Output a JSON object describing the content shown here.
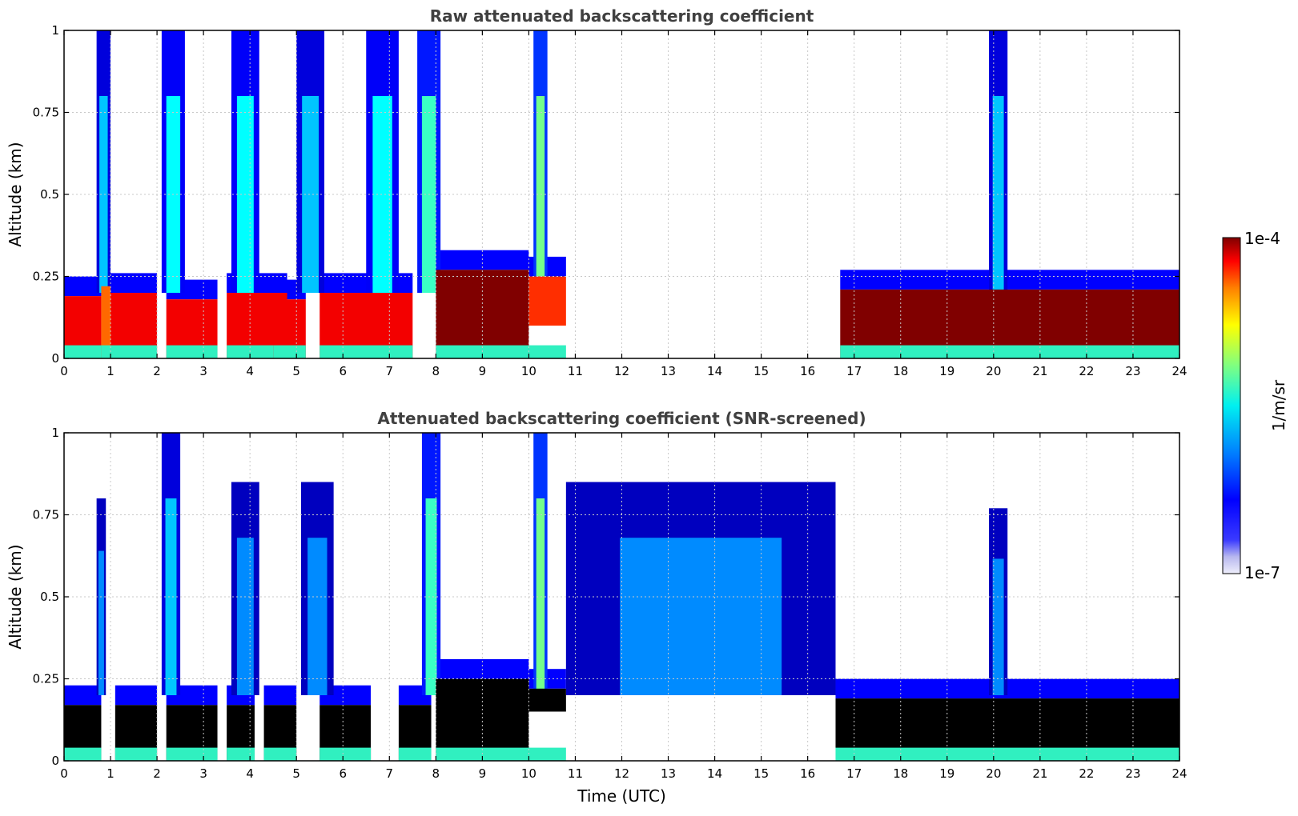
{
  "chart_data": [
    {
      "type": "heatmap",
      "title": "Raw attenuated backscattering coefficient",
      "xlabel": "",
      "ylabel": "Altitude (km)",
      "xlim": [
        0,
        24
      ],
      "ylim": [
        0,
        1
      ],
      "xticks": [
        "0",
        "1",
        "2",
        "3",
        "4",
        "5",
        "6",
        "7",
        "8",
        "9",
        "10",
        "11",
        "12",
        "13",
        "14",
        "15",
        "16",
        "17",
        "18",
        "19",
        "20",
        "21",
        "22",
        "23",
        "24"
      ],
      "yticks": [
        "0",
        "0.25",
        "0.5",
        "0.75",
        "1"
      ],
      "grid": true,
      "layers": [
        {
          "x": [
            0.0,
            0.8
          ],
          "y": [
            0.0,
            0.19
          ],
          "level": 0.9
        },
        {
          "x": [
            0.8,
            1.0
          ],
          "y": [
            0.0,
            0.22
          ],
          "level": 0.8
        },
        {
          "x": [
            1.0,
            2.0
          ],
          "y": [
            0.0,
            0.2
          ],
          "level": 0.9
        },
        {
          "x": [
            2.2,
            3.3
          ],
          "y": [
            0.0,
            0.18
          ],
          "level": 0.9
        },
        {
          "x": [
            3.5,
            4.8
          ],
          "y": [
            0.0,
            0.2
          ],
          "level": 0.9
        },
        {
          "x": [
            4.5,
            5.2
          ],
          "y": [
            0.0,
            0.18
          ],
          "level": 0.9
        },
        {
          "x": [
            5.5,
            7.5
          ],
          "y": [
            0.0,
            0.2
          ],
          "level": 0.9
        },
        {
          "x": [
            8.0,
            10.0
          ],
          "y": [
            0.0,
            0.27
          ],
          "level": 1.0
        },
        {
          "x": [
            10.0,
            10.8
          ],
          "y": [
            0.1,
            0.25
          ],
          "level": 0.85
        },
        {
          "x": [
            16.7,
            24.0
          ],
          "y": [
            0.0,
            0.21
          ],
          "level": 1.0
        }
      ],
      "plumes": [
        {
          "x": [
            0.7,
            1.0
          ],
          "top": 1.0,
          "level": 0.4
        },
        {
          "x": [
            2.1,
            2.6
          ],
          "top": 1.0,
          "level": 0.45
        },
        {
          "x": [
            3.6,
            4.2
          ],
          "top": 1.0,
          "level": 0.45
        },
        {
          "x": [
            5.0,
            5.6
          ],
          "top": 1.0,
          "level": 0.4
        },
        {
          "x": [
            6.5,
            7.2
          ],
          "top": 1.0,
          "level": 0.45
        },
        {
          "x": [
            7.6,
            8.1
          ],
          "top": 1.0,
          "level": 0.5
        },
        {
          "x": [
            10.1,
            10.4
          ],
          "top": 1.0,
          "level": 0.55
        },
        {
          "x": [
            19.9,
            20.3
          ],
          "top": 1.0,
          "level": 0.4
        }
      ],
      "colorbar": {
        "label": "1/m/sr",
        "min": "1e-7",
        "max": "1e-4"
      }
    },
    {
      "type": "heatmap",
      "title": "Attenuated backscattering coefficient (SNR-screened)",
      "xlabel": "Time (UTC)",
      "ylabel": "Altitude (km)",
      "xlim": [
        0,
        24
      ],
      "ylim": [
        0,
        1
      ],
      "xticks": [
        "0",
        "1",
        "2",
        "3",
        "4",
        "5",
        "6",
        "7",
        "8",
        "9",
        "10",
        "11",
        "12",
        "13",
        "14",
        "15",
        "16",
        "17",
        "18",
        "19",
        "20",
        "21",
        "22",
        "23",
        "24"
      ],
      "yticks": [
        "0",
        "0.25",
        "0.5",
        "0.75",
        "1"
      ],
      "grid": true,
      "layers": [
        {
          "x": [
            0.0,
            0.8
          ],
          "y": [
            0.0,
            0.17
          ],
          "level": 1.1
        },
        {
          "x": [
            1.1,
            2.0
          ],
          "y": [
            0.0,
            0.17
          ],
          "level": 1.1
        },
        {
          "x": [
            2.2,
            3.3
          ],
          "y": [
            0.0,
            0.17
          ],
          "level": 1.1
        },
        {
          "x": [
            3.5,
            4.1
          ],
          "y": [
            0.0,
            0.17
          ],
          "level": 1.1
        },
        {
          "x": [
            4.3,
            5.0
          ],
          "y": [
            0.0,
            0.17
          ],
          "level": 1.1
        },
        {
          "x": [
            5.5,
            6.6
          ],
          "y": [
            0.0,
            0.17
          ],
          "level": 1.1
        },
        {
          "x": [
            7.2,
            7.9
          ],
          "y": [
            0.0,
            0.17
          ],
          "level": 1.1
        },
        {
          "x": [
            8.0,
            10.0
          ],
          "y": [
            0.0,
            0.25
          ],
          "level": 1.1
        },
        {
          "x": [
            10.0,
            10.8
          ],
          "y": [
            0.15,
            0.22
          ],
          "level": 1.1
        },
        {
          "x": [
            16.6,
            24.0
          ],
          "y": [
            0.0,
            0.19
          ],
          "level": 1.1
        }
      ],
      "plumes": [
        {
          "x": [
            0.7,
            0.9
          ],
          "top": 0.8,
          "level": 0.35
        },
        {
          "x": [
            2.1,
            2.5
          ],
          "top": 1.0,
          "level": 0.4
        },
        {
          "x": [
            3.6,
            4.2
          ],
          "top": 0.85,
          "level": 0.35
        },
        {
          "x": [
            5.1,
            5.8
          ],
          "top": 0.85,
          "level": 0.35
        },
        {
          "x": [
            7.7,
            8.1
          ],
          "top": 1.0,
          "level": 0.5
        },
        {
          "x": [
            10.1,
            10.4
          ],
          "top": 1.0,
          "level": 0.55
        },
        {
          "x": [
            10.8,
            16.6
          ],
          "top": 0.85,
          "level": 0.35
        },
        {
          "x": [
            19.9,
            20.3
          ],
          "top": 0.77,
          "level": 0.35
        }
      ],
      "colorbar": {
        "label": "1/m/sr",
        "min": "1e-7",
        "max": "1e-4"
      }
    }
  ]
}
